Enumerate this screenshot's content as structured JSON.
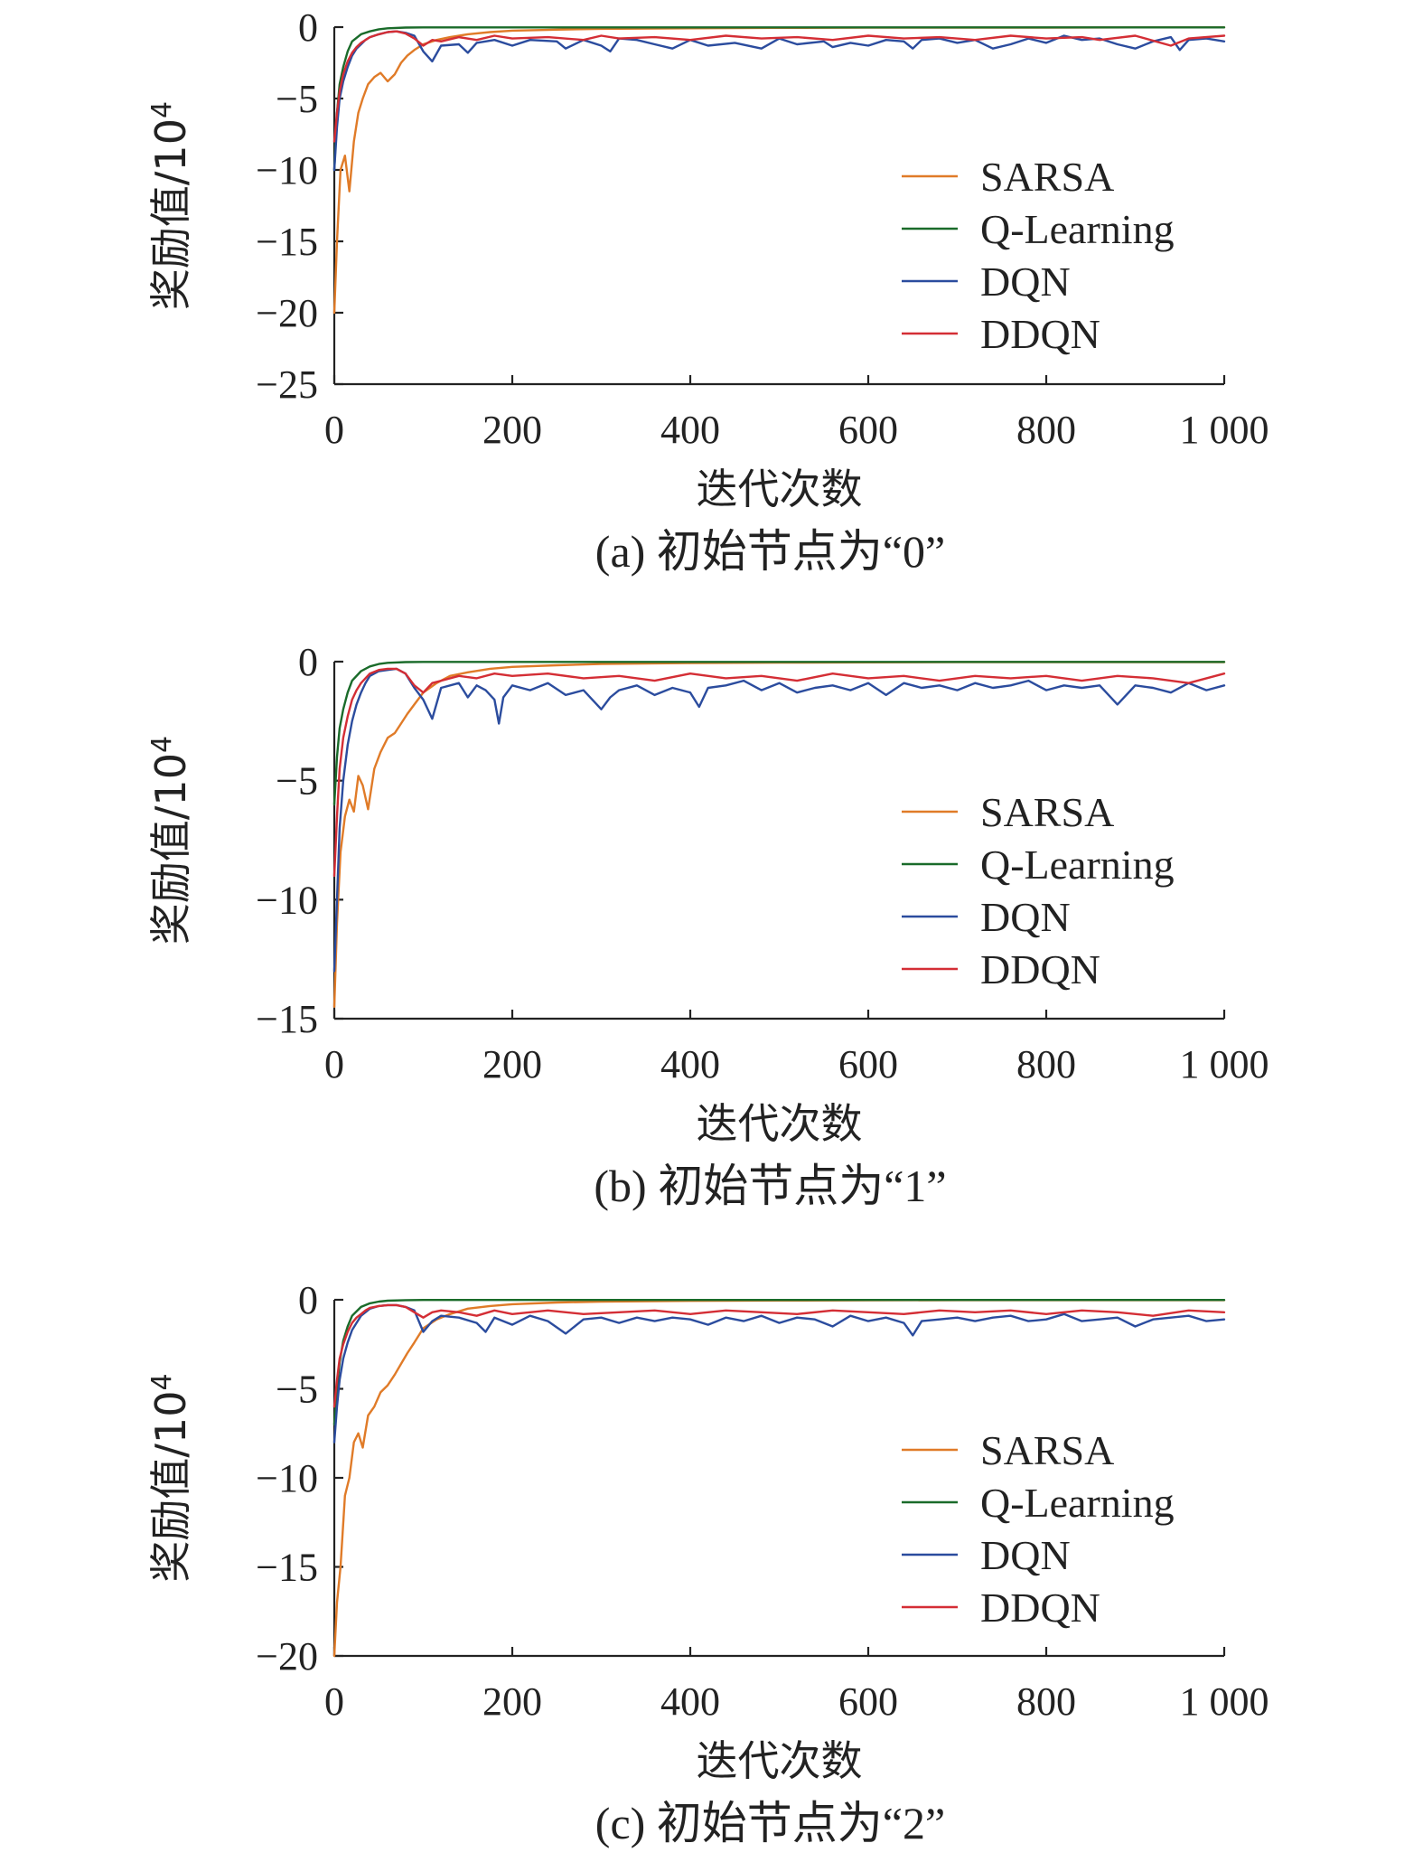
{
  "figure": {
    "series_names": [
      "SARSA",
      "Q-Learning",
      "DQN",
      "DDQN"
    ],
    "series_colors": {
      "SARSA": "#E07B28",
      "Q-Learning": "#1A6B2A",
      "DQN": "#2B4C9E",
      "DDQN": "#D42E35"
    }
  },
  "chart_data": [
    {
      "type": "line",
      "caption": "(a) 初始节点为“0”",
      "xlabel": "迭代次数",
      "ylabel": "奖励值/10",
      "ylabel_sup": "4",
      "xlim": [
        0,
        1000
      ],
      "ylim": [
        -25,
        0
      ],
      "xticks": [
        0,
        200,
        400,
        600,
        800,
        1000
      ],
      "xtick_labels": [
        "0",
        "200",
        "400",
        "600",
        "800",
        "1 000"
      ],
      "yticks": [
        0,
        -5,
        -10,
        -15,
        -20,
        -25
      ],
      "ytick_labels": [
        "0",
        "−5",
        "−10",
        "−15",
        "−20",
        "−25"
      ],
      "legend": [
        "SARSA",
        "Q-Learning",
        "DQN",
        "DDQN"
      ],
      "series": [
        {
          "name": "SARSA",
          "x": [
            0,
            3,
            7,
            12,
            17,
            22,
            27,
            32,
            38,
            45,
            52,
            60,
            68,
            75,
            82,
            90,
            100,
            115,
            130,
            150,
            175,
            200,
            250,
            300,
            400,
            500,
            600,
            700,
            800,
            900,
            1000
          ],
          "y": [
            -20,
            -15,
            -10,
            -9,
            -11.5,
            -8,
            -6,
            -5,
            -4,
            -3.5,
            -3.2,
            -3.8,
            -3.3,
            -2.5,
            -2.0,
            -1.6,
            -1.2,
            -0.9,
            -0.7,
            -0.5,
            -0.35,
            -0.25,
            -0.18,
            -0.12,
            -0.08,
            -0.05,
            -0.04,
            -0.03,
            -0.03,
            -0.02,
            -0.02
          ]
        },
        {
          "name": "Q-Learning",
          "x": [
            0,
            3,
            6,
            10,
            15,
            20,
            30,
            40,
            50,
            60,
            80,
            100,
            1000
          ],
          "y": [
            -10,
            -6,
            -4,
            -2.8,
            -1.7,
            -1.0,
            -0.5,
            -0.3,
            -0.15,
            -0.08,
            -0.03,
            -0.02,
            -0.02
          ]
        },
        {
          "name": "DQN",
          "x": [
            0,
            3,
            6,
            10,
            15,
            20,
            25,
            30,
            35,
            40,
            50,
            60,
            70,
            80,
            90,
            100,
            110,
            120,
            140,
            150,
            160,
            170,
            180,
            200,
            220,
            250,
            260,
            280,
            300,
            310,
            320,
            340,
            360,
            380,
            400,
            420,
            450,
            480,
            500,
            520,
            550,
            560,
            580,
            600,
            620,
            640,
            650,
            660,
            680,
            700,
            720,
            740,
            760,
            780,
            800,
            820,
            840,
            860,
            880,
            900,
            920,
            940,
            950,
            960,
            980,
            1000
          ],
          "y": [
            -10,
            -7,
            -5,
            -3.8,
            -2.8,
            -2.0,
            -1.5,
            -1.2,
            -0.9,
            -0.7,
            -0.5,
            -0.35,
            -0.3,
            -0.4,
            -0.6,
            -1.7,
            -2.4,
            -1.3,
            -1.2,
            -1.8,
            -1.1,
            -1.0,
            -0.9,
            -1.3,
            -0.9,
            -1.0,
            -1.5,
            -0.9,
            -1.3,
            -1.7,
            -0.8,
            -0.9,
            -1.2,
            -1.5,
            -0.9,
            -1.3,
            -1.1,
            -1.5,
            -0.8,
            -1.2,
            -1.0,
            -1.4,
            -1.1,
            -1.3,
            -0.9,
            -1.0,
            -1.5,
            -0.9,
            -0.8,
            -1.1,
            -0.9,
            -1.5,
            -1.2,
            -0.8,
            -1.1,
            -0.6,
            -0.9,
            -0.8,
            -1.2,
            -1.5,
            -1.0,
            -0.7,
            -1.6,
            -0.9,
            -0.8,
            -1.0
          ]
        },
        {
          "name": "DDQN",
          "x": [
            0,
            3,
            6,
            10,
            15,
            20,
            25,
            30,
            35,
            40,
            50,
            60,
            70,
            80,
            90,
            100,
            110,
            120,
            140,
            160,
            180,
            200,
            240,
            280,
            300,
            320,
            360,
            400,
            440,
            480,
            520,
            560,
            600,
            640,
            680,
            720,
            760,
            800,
            840,
            860,
            900,
            940,
            960,
            1000
          ],
          "y": [
            -8,
            -6,
            -4.5,
            -3.3,
            -2.4,
            -1.8,
            -1.4,
            -1.1,
            -0.9,
            -0.7,
            -0.5,
            -0.35,
            -0.3,
            -0.45,
            -0.8,
            -1.3,
            -0.9,
            -1.0,
            -0.7,
            -0.9,
            -0.6,
            -0.8,
            -0.7,
            -0.9,
            -0.6,
            -0.8,
            -0.7,
            -0.9,
            -0.6,
            -0.8,
            -0.7,
            -0.9,
            -0.6,
            -0.8,
            -0.7,
            -0.9,
            -0.6,
            -0.8,
            -0.7,
            -0.9,
            -0.6,
            -1.3,
            -0.8,
            -0.6
          ]
        }
      ]
    },
    {
      "type": "line",
      "caption": "(b) 初始节点为“1”",
      "xlabel": "迭代次数",
      "ylabel": "奖励值/10",
      "ylabel_sup": "4",
      "xlim": [
        0,
        1000
      ],
      "ylim": [
        -15,
        0
      ],
      "xticks": [
        0,
        200,
        400,
        600,
        800,
        1000
      ],
      "xtick_labels": [
        "0",
        "200",
        "400",
        "600",
        "800",
        "1 000"
      ],
      "yticks": [
        0,
        -5,
        -10,
        -15
      ],
      "ytick_labels": [
        "0",
        "−5",
        "−10",
        "−15"
      ],
      "legend": [
        "SARSA",
        "Q-Learning",
        "DQN",
        "DDQN"
      ],
      "series": [
        {
          "name": "SARSA",
          "x": [
            0,
            3,
            7,
            12,
            17,
            22,
            27,
            32,
            38,
            45,
            52,
            60,
            68,
            75,
            82,
            90,
            100,
            115,
            130,
            150,
            175,
            200,
            250,
            300,
            400,
            500,
            600,
            700,
            800,
            900,
            1000
          ],
          "y": [
            -14.5,
            -11,
            -8,
            -6.5,
            -5.8,
            -6.3,
            -4.8,
            -5.2,
            -6.2,
            -4.5,
            -3.8,
            -3.2,
            -3.0,
            -2.6,
            -2.2,
            -1.8,
            -1.3,
            -0.9,
            -0.6,
            -0.45,
            -0.3,
            -0.22,
            -0.15,
            -0.1,
            -0.06,
            -0.04,
            -0.03,
            -0.02,
            -0.02,
            -0.02,
            -0.02
          ]
        },
        {
          "name": "Q-Learning",
          "x": [
            0,
            3,
            6,
            10,
            15,
            20,
            30,
            40,
            50,
            60,
            80,
            100,
            1000
          ],
          "y": [
            -6,
            -4,
            -2.8,
            -2.0,
            -1.3,
            -0.8,
            -0.4,
            -0.2,
            -0.1,
            -0.05,
            -0.02,
            -0.01,
            -0.01
          ]
        },
        {
          "name": "DQN",
          "x": [
            0,
            3,
            6,
            10,
            15,
            20,
            25,
            30,
            35,
            40,
            50,
            60,
            70,
            80,
            90,
            100,
            110,
            120,
            140,
            150,
            160,
            170,
            180,
            185,
            190,
            200,
            220,
            240,
            260,
            280,
            300,
            310,
            320,
            340,
            360,
            380,
            400,
            410,
            420,
            440,
            460,
            480,
            500,
            520,
            540,
            560,
            580,
            600,
            620,
            640,
            660,
            680,
            700,
            720,
            740,
            760,
            780,
            800,
            820,
            840,
            860,
            880,
            900,
            920,
            940,
            960,
            980,
            1000
          ],
          "y": [
            -13,
            -10,
            -7,
            -5,
            -3.5,
            -2.5,
            -1.8,
            -1.3,
            -0.9,
            -0.6,
            -0.4,
            -0.35,
            -0.3,
            -0.5,
            -1.1,
            -1.6,
            -2.4,
            -1.1,
            -0.9,
            -1.5,
            -1.0,
            -1.2,
            -1.6,
            -2.6,
            -1.5,
            -1.0,
            -1.2,
            -0.9,
            -1.4,
            -1.2,
            -2.0,
            -1.5,
            -1.2,
            -1.0,
            -1.4,
            -1.1,
            -1.3,
            -1.9,
            -1.1,
            -1.0,
            -0.8,
            -1.2,
            -0.9,
            -1.3,
            -1.1,
            -1.0,
            -1.2,
            -0.9,
            -1.4,
            -0.9,
            -1.1,
            -1.0,
            -1.2,
            -0.9,
            -1.1,
            -1.0,
            -0.8,
            -1.2,
            -1.0,
            -1.1,
            -1.0,
            -1.8,
            -1.0,
            -1.1,
            -1.3,
            -0.9,
            -1.2,
            -1.0
          ]
        },
        {
          "name": "DDQN",
          "x": [
            0,
            3,
            6,
            10,
            15,
            20,
            25,
            30,
            35,
            40,
            50,
            60,
            70,
            80,
            90,
            100,
            110,
            120,
            140,
            160,
            180,
            200,
            240,
            280,
            320,
            360,
            400,
            440,
            480,
            520,
            560,
            600,
            640,
            680,
            720,
            760,
            800,
            840,
            880,
            920,
            960,
            1000
          ],
          "y": [
            -9,
            -6.5,
            -4.5,
            -3.2,
            -2.3,
            -1.6,
            -1.2,
            -0.9,
            -0.7,
            -0.5,
            -0.35,
            -0.3,
            -0.3,
            -0.5,
            -1.0,
            -1.3,
            -0.9,
            -0.8,
            -0.6,
            -0.7,
            -0.5,
            -0.6,
            -0.5,
            -0.7,
            -0.6,
            -0.8,
            -0.5,
            -0.7,
            -0.6,
            -0.8,
            -0.5,
            -0.7,
            -0.6,
            -0.8,
            -0.6,
            -0.7,
            -0.6,
            -0.8,
            -0.6,
            -0.7,
            -0.9,
            -0.5
          ]
        }
      ]
    },
    {
      "type": "line",
      "caption": "(c) 初始节点为“2”",
      "xlabel": "迭代次数",
      "ylabel": "奖励值/10",
      "ylabel_sup": "4",
      "xlim": [
        0,
        1000
      ],
      "ylim": [
        -20,
        0
      ],
      "xticks": [
        0,
        200,
        400,
        600,
        800,
        1000
      ],
      "xtick_labels": [
        "0",
        "200",
        "400",
        "600",
        "800",
        "1 000"
      ],
      "yticks": [
        0,
        -5,
        -10,
        -15,
        -20
      ],
      "ytick_labels": [
        "0",
        "−5",
        "−10",
        "−15",
        "−20"
      ],
      "legend": [
        "SARSA",
        "Q-Learning",
        "DQN",
        "DDQN"
      ],
      "series": [
        {
          "name": "SARSA",
          "x": [
            0,
            3,
            7,
            12,
            17,
            22,
            27,
            32,
            38,
            45,
            52,
            60,
            68,
            75,
            82,
            90,
            100,
            115,
            130,
            150,
            175,
            200,
            250,
            300,
            400,
            500,
            600,
            700,
            800,
            900,
            1000
          ],
          "y": [
            -20,
            -17,
            -15,
            -11,
            -10,
            -8,
            -7.5,
            -8.3,
            -6.5,
            -6,
            -5.2,
            -4.8,
            -4.2,
            -3.6,
            -3.0,
            -2.4,
            -1.6,
            -1.1,
            -0.8,
            -0.5,
            -0.35,
            -0.25,
            -0.15,
            -0.1,
            -0.06,
            -0.04,
            -0.03,
            -0.02,
            -0.02,
            -0.02,
            -0.02
          ]
        },
        {
          "name": "Q-Learning",
          "x": [
            0,
            3,
            6,
            10,
            15,
            20,
            30,
            40,
            50,
            60,
            80,
            100,
            1000
          ],
          "y": [
            -7,
            -5,
            -3.5,
            -2.3,
            -1.5,
            -0.9,
            -0.4,
            -0.2,
            -0.1,
            -0.05,
            -0.02,
            -0.01,
            -0.01
          ]
        },
        {
          "name": "DQN",
          "x": [
            0,
            3,
            6,
            10,
            15,
            20,
            25,
            30,
            35,
            40,
            50,
            60,
            70,
            80,
            90,
            100,
            110,
            120,
            140,
            160,
            170,
            180,
            200,
            220,
            240,
            260,
            280,
            300,
            320,
            340,
            360,
            380,
            400,
            420,
            440,
            460,
            480,
            500,
            520,
            540,
            560,
            580,
            600,
            620,
            640,
            650,
            660,
            680,
            700,
            720,
            740,
            760,
            780,
            800,
            820,
            840,
            860,
            880,
            900,
            920,
            940,
            960,
            980,
            1000
          ],
          "y": [
            -8,
            -6,
            -4.5,
            -3.3,
            -2.4,
            -1.7,
            -1.3,
            -0.9,
            -0.7,
            -0.5,
            -0.35,
            -0.3,
            -0.3,
            -0.4,
            -0.6,
            -1.8,
            -1.2,
            -0.9,
            -1.0,
            -1.3,
            -1.8,
            -1.0,
            -1.4,
            -0.9,
            -1.2,
            -1.9,
            -1.1,
            -1.0,
            -1.3,
            -1.0,
            -1.2,
            -1.0,
            -1.1,
            -1.4,
            -1.0,
            -1.2,
            -0.9,
            -1.3,
            -1.0,
            -1.1,
            -1.5,
            -0.9,
            -1.2,
            -1.0,
            -1.3,
            -2.0,
            -1.2,
            -1.1,
            -1.0,
            -1.2,
            -1.0,
            -0.9,
            -1.2,
            -1.1,
            -0.8,
            -1.2,
            -1.1,
            -1.0,
            -1.5,
            -1.1,
            -1.0,
            -0.9,
            -1.2,
            -1.1
          ]
        },
        {
          "name": "DDQN",
          "x": [
            0,
            3,
            6,
            10,
            15,
            20,
            25,
            30,
            35,
            40,
            50,
            60,
            70,
            80,
            90,
            100,
            110,
            120,
            140,
            160,
            180,
            200,
            240,
            280,
            320,
            360,
            400,
            440,
            480,
            520,
            560,
            600,
            640,
            680,
            720,
            760,
            800,
            840,
            880,
            920,
            960,
            1000
          ],
          "y": [
            -6,
            -4.5,
            -3.3,
            -2.5,
            -1.8,
            -1.3,
            -1.0,
            -0.8,
            -0.6,
            -0.45,
            -0.35,
            -0.3,
            -0.3,
            -0.4,
            -0.7,
            -1.0,
            -0.7,
            -0.6,
            -0.7,
            -0.9,
            -0.6,
            -0.8,
            -0.6,
            -0.8,
            -0.7,
            -0.6,
            -0.8,
            -0.6,
            -0.7,
            -0.8,
            -0.6,
            -0.7,
            -0.8,
            -0.6,
            -0.7,
            -0.6,
            -0.8,
            -0.6,
            -0.7,
            -0.9,
            -0.6,
            -0.7
          ]
        }
      ]
    }
  ]
}
